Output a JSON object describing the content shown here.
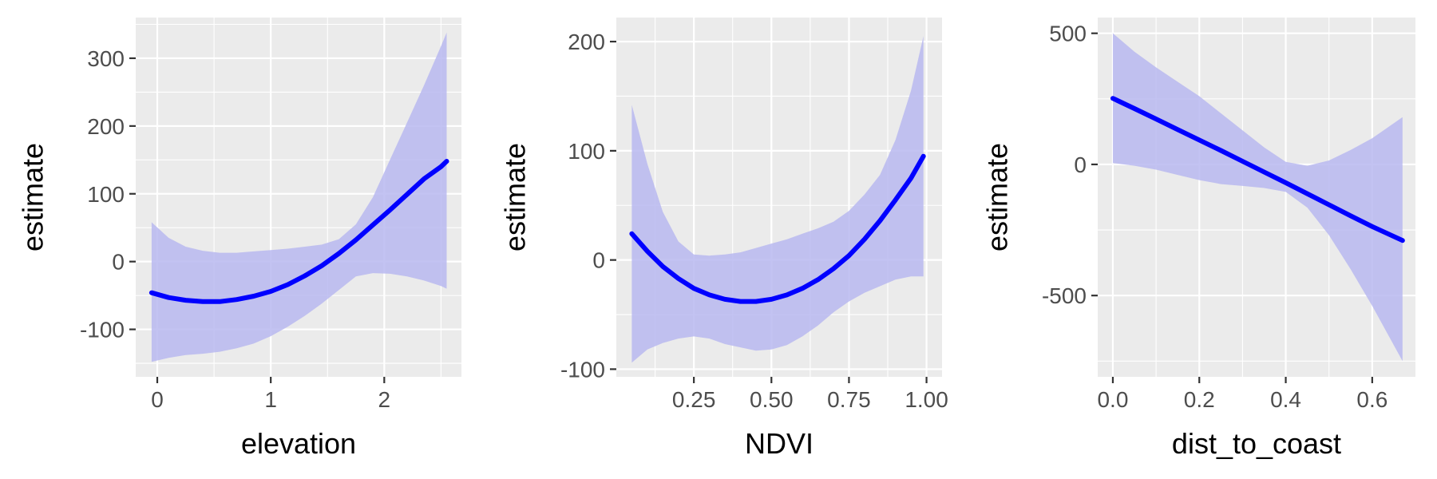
{
  "chart_data": [
    {
      "type": "line",
      "xlabel": "elevation",
      "ylabel": "estimate",
      "xlim": [
        -0.19,
        2.68
      ],
      "ylim": [
        -170,
        360
      ],
      "x_ticks": [
        0,
        1,
        2
      ],
      "x_tick_labels": [
        "0",
        "1",
        "2"
      ],
      "y_ticks": [
        -100,
        0,
        100,
        200,
        300
      ],
      "y_tick_labels": [
        "-100",
        "0",
        "100",
        "200",
        "300"
      ],
      "grid": true,
      "series": [
        {
          "x": [
            -0.05,
            0.1,
            0.25,
            0.4,
            0.55,
            0.7,
            0.85,
            1.0,
            1.15,
            1.3,
            1.45,
            1.6,
            1.75,
            1.9,
            2.05,
            2.2,
            2.35,
            2.5,
            2.55
          ],
          "y": [
            -46,
            -53,
            -57,
            -59,
            -59,
            -56,
            -51,
            -44,
            -34,
            -21,
            -6,
            12,
            32,
            54,
            76,
            99,
            122,
            140,
            148
          ],
          "lower": [
            -148,
            -142,
            -138,
            -136,
            -133,
            -128,
            -121,
            -110,
            -96,
            -80,
            -62,
            -42,
            -22,
            -17,
            -18,
            -22,
            -28,
            -36,
            -40
          ],
          "upper": [
            58,
            35,
            22,
            16,
            13,
            13,
            15,
            17,
            19,
            22,
            25,
            33,
            55,
            95,
            150,
            205,
            260,
            318,
            338
          ]
        }
      ],
      "colors": {
        "line": "#0000FF",
        "ribbon": "#B8B8F0"
      }
    },
    {
      "type": "line",
      "xlabel": "NDVI",
      "ylabel": "estimate",
      "xlim": [
        0.0,
        1.05
      ],
      "ylim": [
        -107,
        222
      ],
      "x_ticks": [
        0.25,
        0.5,
        0.75,
        1.0
      ],
      "x_tick_labels": [
        "0.25",
        "0.50",
        "0.75",
        "1.00"
      ],
      "y_ticks": [
        -100,
        0,
        100,
        200
      ],
      "y_tick_labels": [
        "-100",
        "0",
        "100",
        "200"
      ],
      "grid": true,
      "series": [
        {
          "x": [
            0.05,
            0.1,
            0.15,
            0.2,
            0.25,
            0.3,
            0.35,
            0.4,
            0.45,
            0.5,
            0.55,
            0.6,
            0.65,
            0.7,
            0.75,
            0.8,
            0.85,
            0.9,
            0.95,
            0.99
          ],
          "y": [
            24,
            8,
            -6,
            -17,
            -26,
            -32,
            -36,
            -38,
            -38,
            -36,
            -32,
            -26,
            -18,
            -8,
            4,
            19,
            36,
            55,
            75,
            95
          ],
          "lower": [
            -94,
            -82,
            -76,
            -72,
            -70,
            -72,
            -77,
            -80,
            -83,
            -82,
            -78,
            -70,
            -60,
            -48,
            -38,
            -30,
            -24,
            -18,
            -15,
            -15
          ],
          "upper": [
            142,
            88,
            44,
            17,
            5,
            4,
            5,
            7,
            11,
            15,
            19,
            24,
            29,
            35,
            45,
            60,
            78,
            110,
            155,
            205
          ]
        }
      ],
      "colors": {
        "line": "#0000FF",
        "ribbon": "#B8B8F0"
      }
    },
    {
      "type": "line",
      "xlabel": "dist_to_coast",
      "ylabel": "estimate",
      "xlim": [
        -0.035,
        0.7
      ],
      "ylim": [
        -810,
        560
      ],
      "x_ticks": [
        0.0,
        0.2,
        0.4,
        0.6
      ],
      "x_tick_labels": [
        "0.0",
        "0.2",
        "0.4",
        "0.6"
      ],
      "y_ticks": [
        -500,
        0,
        500
      ],
      "y_tick_labels": [
        "-500",
        "0",
        "500"
      ],
      "grid": true,
      "series": [
        {
          "x": [
            0.0,
            0.05,
            0.1,
            0.15,
            0.2,
            0.25,
            0.3,
            0.35,
            0.4,
            0.45,
            0.5,
            0.55,
            0.6,
            0.67
          ],
          "y": [
            252,
            213,
            173,
            133,
            93,
            53,
            12,
            -29,
            -70,
            -112,
            -154,
            -196,
            -237,
            -290
          ],
          "lower": [
            5,
            -5,
            -20,
            -40,
            -60,
            -75,
            -82,
            -90,
            -105,
            -165,
            -270,
            -400,
            -540,
            -750
          ],
          "upper": [
            500,
            430,
            370,
            315,
            260,
            195,
            130,
            65,
            10,
            -5,
            15,
            55,
            100,
            180
          ]
        }
      ],
      "colors": {
        "line": "#0000FF",
        "ribbon": "#B8B8F0"
      }
    }
  ]
}
